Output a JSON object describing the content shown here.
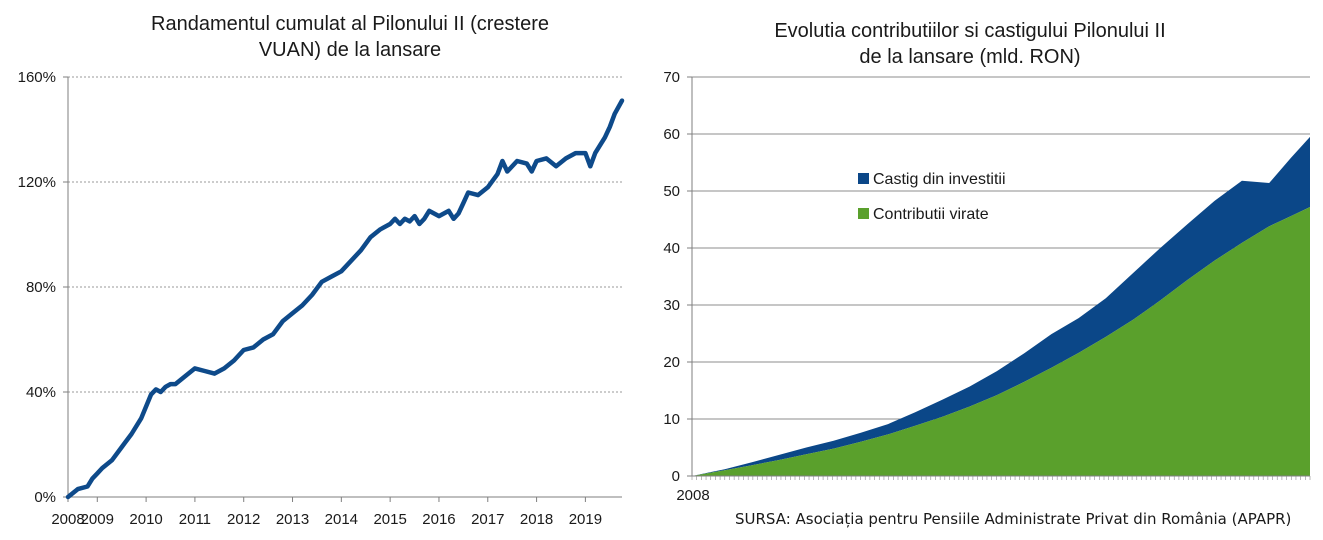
{
  "chart_data": [
    {
      "type": "line",
      "title": "Randamentul cumulat al Pilonului II (crestere VUAN) de la lansare",
      "title_lines": [
        "Randamentul cumulat al Pilonului II (crestere",
        "VUAN) de la lansare"
      ],
      "xlabel": "",
      "ylabel": "",
      "ylim": [
        0,
        160
      ],
      "y_ticks": [
        "0%",
        "40%",
        "80%",
        "120%",
        "160%"
      ],
      "y_tick_values": [
        0,
        40,
        80,
        120,
        160
      ],
      "x_ticks": [
        "2008",
        "2009",
        "2010",
        "2011",
        "2012",
        "2013",
        "2014",
        "2015",
        "2016",
        "2017",
        "2018",
        "2019"
      ],
      "x_range": [
        2008.4,
        2019.75
      ],
      "grid": "horizontal dashed",
      "line_color": "#0e4a8a",
      "series": [
        {
          "x": [
            2008.4,
            2008.6,
            2008.8,
            2008.9,
            2009.0,
            2009.1,
            2009.3,
            2009.5,
            2009.7,
            2009.9,
            2010.1,
            2010.2,
            2010.3,
            2010.4,
            2010.5,
            2010.6,
            2010.8,
            2011.0,
            2011.2,
            2011.4,
            2011.6,
            2011.8,
            2012.0,
            2012.2,
            2012.4,
            2012.6,
            2012.8,
            2013.0,
            2013.2,
            2013.4,
            2013.6,
            2013.8,
            2014.0,
            2014.2,
            2014.4,
            2014.6,
            2014.8,
            2015.0,
            2015.1,
            2015.2,
            2015.3,
            2015.4,
            2015.5,
            2015.6,
            2015.7,
            2015.8,
            2016.0,
            2016.2,
            2016.3,
            2016.4,
            2016.5,
            2016.6,
            2016.8,
            2017.0,
            2017.2,
            2017.3,
            2017.4,
            2017.6,
            2017.8,
            2017.9,
            2018.0,
            2018.2,
            2018.4,
            2018.6,
            2018.8,
            2019.0,
            2019.1,
            2019.2,
            2019.3,
            2019.4,
            2019.5,
            2019.6,
            2019.75
          ],
          "values": [
            0,
            3,
            4,
            7,
            9,
            11,
            14,
            19,
            24,
            30,
            39,
            41,
            40,
            42,
            43,
            43,
            46,
            49,
            48,
            47,
            49,
            52,
            56,
            57,
            60,
            62,
            67,
            70,
            73,
            77,
            82,
            84,
            86,
            90,
            94,
            99,
            102,
            104,
            106,
            104,
            106,
            105,
            107,
            104,
            106,
            109,
            107,
            109,
            106,
            108,
            112,
            116,
            115,
            118,
            123,
            128,
            124,
            128,
            127,
            124,
            128,
            129,
            126,
            129,
            131,
            131,
            126,
            131,
            134,
            137,
            141,
            146,
            151
          ]
        }
      ]
    },
    {
      "type": "area",
      "title": "Evolutia contributiilor si castigului Pilonului II de la lansare (mld. RON)",
      "title_lines": [
        "Evolutia contributiilor si castigului Pilonului II",
        "de la lansare (mld. RON)"
      ],
      "xlabel": "",
      "ylabel": "",
      "stacked": true,
      "ylim": [
        0,
        70
      ],
      "y_ticks": [
        "0",
        "10",
        "20",
        "30",
        "40",
        "50",
        "60",
        "70"
      ],
      "y_tick_values": [
        0,
        10,
        20,
        30,
        40,
        50,
        60,
        70
      ],
      "x_ticks": [
        "2008"
      ],
      "x_range": [
        2008.4,
        2019.75
      ],
      "grid": "horizontal solid",
      "legend_position": "top-left inside",
      "x": [
        2008.4,
        2008.75,
        2009.0,
        2009.5,
        2010.0,
        2010.5,
        2011.0,
        2011.5,
        2012.0,
        2012.5,
        2013.0,
        2013.5,
        2014.0,
        2014.5,
        2015.0,
        2015.5,
        2016.0,
        2016.5,
        2017.0,
        2017.5,
        2018.0,
        2018.5,
        2019.0,
        2019.4,
        2019.75
      ],
      "series": [
        {
          "name": "Contributii virate",
          "color": "#5aa02c",
          "values": [
            0,
            0.6,
            1.0,
            1.9,
            2.8,
            3.8,
            4.8,
            6.0,
            7.3,
            8.8,
            10.4,
            12.2,
            14.2,
            16.5,
            19.0,
            21.6,
            24.4,
            27.4,
            30.8,
            34.4,
            37.8,
            40.9,
            43.8,
            45.6,
            47.2
          ]
        },
        {
          "name": "Castig din investitii",
          "color": "#0b4788",
          "values": [
            0,
            0.1,
            0.2,
            0.5,
            0.9,
            1.2,
            1.4,
            1.6,
            1.8,
            2.4,
            3.0,
            3.5,
            4.2,
            5.0,
            5.9,
            6.1,
            6.8,
            8.2,
            9.2,
            9.8,
            10.5,
            10.9,
            7.6,
            10.2,
            12.3
          ]
        }
      ],
      "source_note": "SURSA: Asociația pentru Pensiile Administrate Privat din România (APAPR)"
    }
  ]
}
